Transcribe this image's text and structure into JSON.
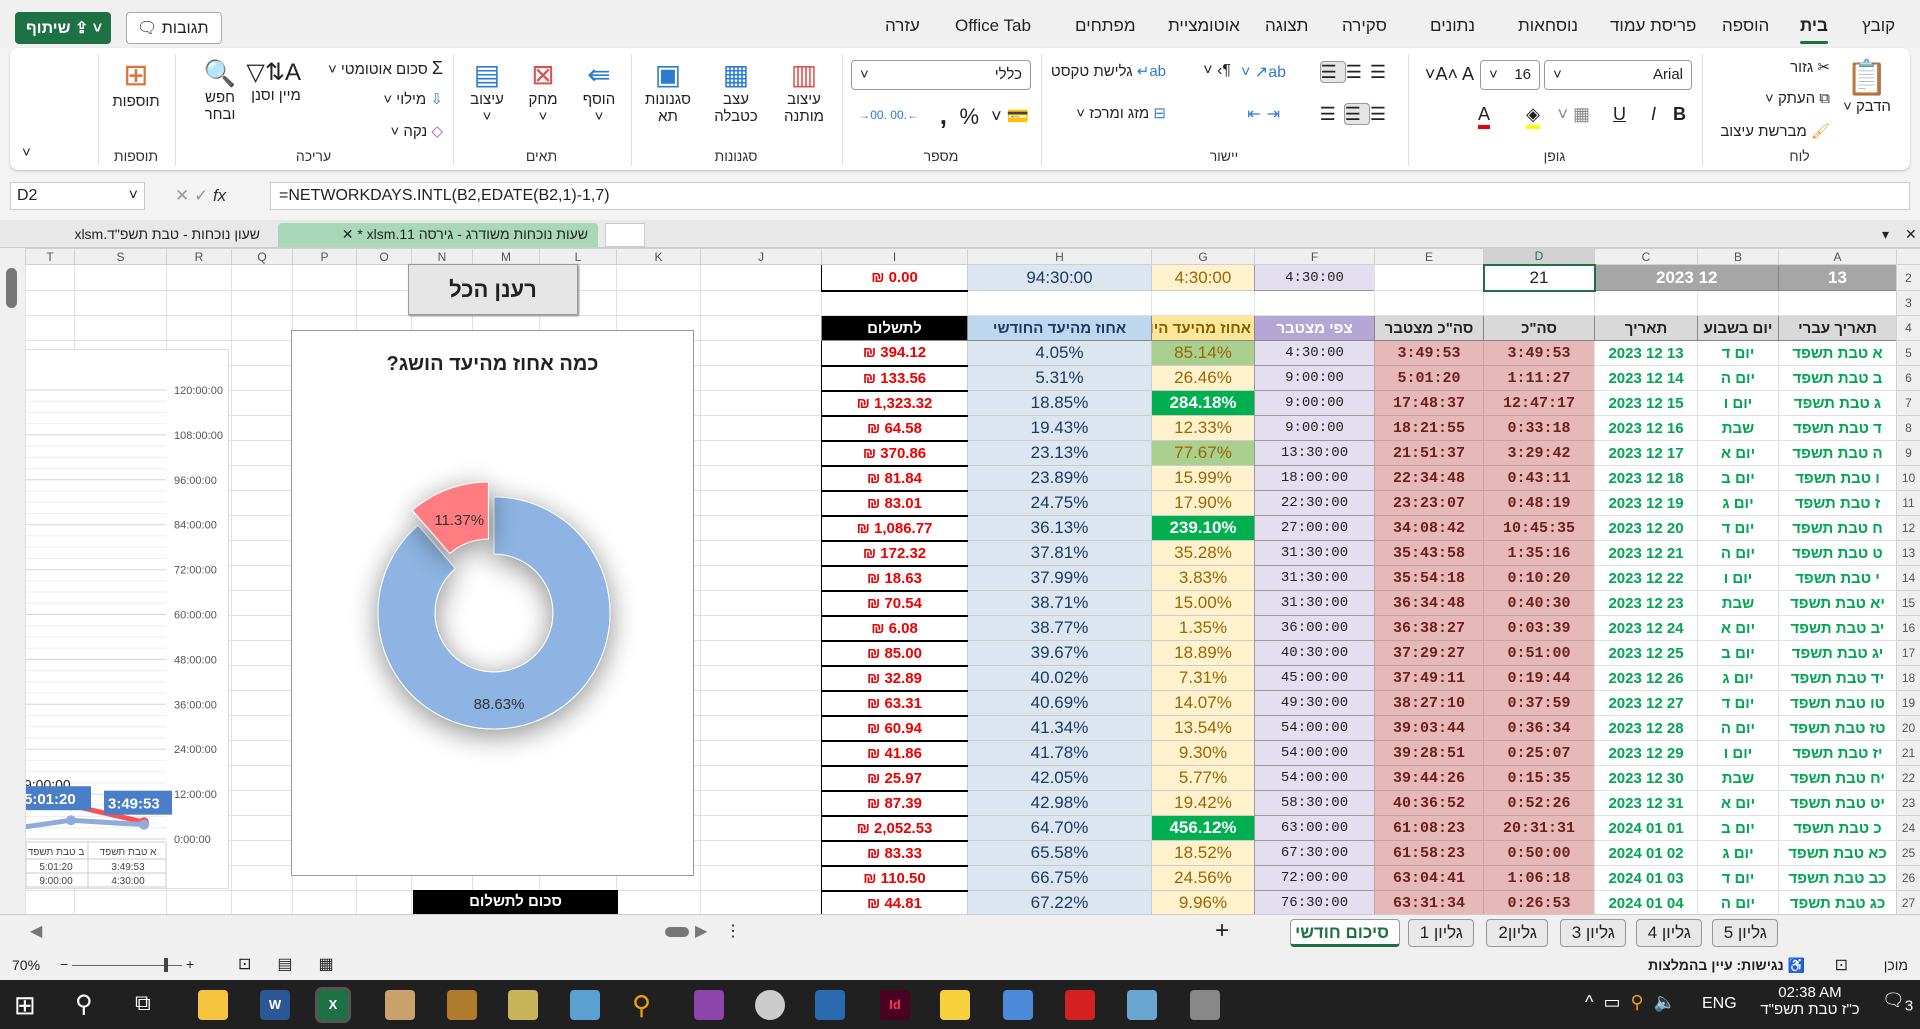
{
  "ribbon": {
    "tabs": [
      "קובץ",
      "בית",
      "הוספה",
      "פריסת עמוד",
      "נוסחאות",
      "נתונים",
      "סקירה",
      "תצוגה",
      "אוטומציית",
      "מפתחים",
      "Office Tab",
      "עזרה"
    ],
    "active_tab": "בית",
    "comments": "תגובות",
    "share": "שיתוף",
    "clipboard": {
      "label": "לוח",
      "paste": "הדבק",
      "cut": "גזור",
      "copy": "העתק",
      "format_painter": "מברשת עיצוב"
    },
    "font": {
      "label": "גופן",
      "name": "Arial",
      "size": "16",
      "bold": "B",
      "italic": "I",
      "underline": "U"
    },
    "alignment": {
      "label": "יישור",
      "wrap": "גלישת טקסט",
      "merge": "מזג ומרכז"
    },
    "number": {
      "label": "מספר",
      "format": "כללי",
      "percent": "%",
      "comma": ","
    },
    "styles": {
      "label": "סגנונות",
      "conditional": "עיצוב מותנה",
      "table": "עצב כטבלה",
      "cell": "סגנונות תא"
    },
    "cells": {
      "label": "תאים",
      "insert": "הוסף",
      "delete": "מחק",
      "format": "עיצוב"
    },
    "editing": {
      "label": "עריכה",
      "autosum": "סכום אוטומטי",
      "fill": "מילוי",
      "clear": "נקה",
      "sort": "מיין וסנן",
      "find": "חפש ובחר"
    },
    "addins": {
      "label": "תוספות",
      "addins": "תוספות"
    }
  },
  "formula_bar": {
    "name_box": "D2",
    "fx": "fx",
    "formula": "=NETWORKDAYS.INTL(B2,EDATE(B2,1)-1,7)"
  },
  "workbook_tabs": [
    {
      "label": "שעות נוכחות משודרג - גירסה 11.xlsm *",
      "active": true
    },
    {
      "label": "שעון נוכחות - טבת תשפ\"ד.xlsm",
      "active": false
    }
  ],
  "columns": [
    "A",
    "B",
    "C",
    "D",
    "E",
    "F",
    "G",
    "H",
    "I",
    "J",
    "K",
    "L",
    "M",
    "N",
    "O",
    "P",
    "Q",
    "R",
    "S",
    "T"
  ],
  "selected_column": "D",
  "row2": {
    "A": "13",
    "BC": "12 2023",
    "D": "21",
    "F": "4:30:00",
    "G": "4:30:00",
    "H": "94:30:00",
    "I": "₪ 0.00"
  },
  "headers": [
    "תאריך עברי",
    "יום בשבוע",
    "תאריך",
    "סה\"כ",
    "סה\"כ מצטבר",
    "צפי מצטבר",
    "אחוז מהיעד היומי",
    "אחוז מהיעד החודשי",
    "לתשלום"
  ],
  "rows": [
    [
      "א טבת תשפד",
      "יום ד",
      "13 12 2023",
      "3:49:53",
      "3:49:53",
      "4:30:00",
      "85.14%",
      "4.05%",
      "₪ 394.12"
    ],
    [
      "ב טבת תשפד",
      "יום ה",
      "14 12 2023",
      "1:11:27",
      "5:01:20",
      "9:00:00",
      "26.46%",
      "5.31%",
      "₪ 133.56"
    ],
    [
      "ג טבת תשפד",
      "יום ו",
      "15 12 2023",
      "12:47:17",
      "17:48:37",
      "9:00:00",
      "284.18%",
      "18.85%",
      "₪ 1,323.32"
    ],
    [
      "ד טבת תשפד",
      "שבת",
      "16 12 2023",
      "0:33:18",
      "18:21:55",
      "9:00:00",
      "12.33%",
      "19.43%",
      "₪ 64.58"
    ],
    [
      "ה טבת תשפד",
      "יום א",
      "17 12 2023",
      "3:29:42",
      "21:51:37",
      "13:30:00",
      "77.67%",
      "23.13%",
      "₪ 370.86"
    ],
    [
      "ו טבת תשפד",
      "יום ב",
      "18 12 2023",
      "0:43:11",
      "22:34:48",
      "18:00:00",
      "15.99%",
      "23.89%",
      "₪ 81.84"
    ],
    [
      "ז טבת תשפד",
      "יום ג",
      "19 12 2023",
      "0:48:19",
      "23:23:07",
      "22:30:00",
      "17.90%",
      "24.75%",
      "₪ 83.01"
    ],
    [
      "ח טבת תשפד",
      "יום ד",
      "20 12 2023",
      "10:45:35",
      "34:08:42",
      "27:00:00",
      "239.10%",
      "36.13%",
      "₪ 1,086.77"
    ],
    [
      "ט טבת תשפד",
      "יום ה",
      "21 12 2023",
      "1:35:16",
      "35:43:58",
      "31:30:00",
      "35.28%",
      "37.81%",
      "₪ 172.32"
    ],
    [
      "י טבת תשפד",
      "יום ו",
      "22 12 2023",
      "0:10:20",
      "35:54:18",
      "31:30:00",
      "3.83%",
      "37.99%",
      "₪ 18.63"
    ],
    [
      "יא טבת תשפד",
      "שבת",
      "23 12 2023",
      "0:40:30",
      "36:34:48",
      "31:30:00",
      "15.00%",
      "38.71%",
      "₪ 70.54"
    ],
    [
      "יב טבת תשפד",
      "יום א",
      "24 12 2023",
      "0:03:39",
      "36:38:27",
      "36:00:00",
      "1.35%",
      "38.77%",
      "₪ 6.08"
    ],
    [
      "יג טבת תשפד",
      "יום ב",
      "25 12 2023",
      "0:51:00",
      "37:29:27",
      "40:30:00",
      "18.89%",
      "39.67%",
      "₪ 85.00"
    ],
    [
      "יד טבת תשפד",
      "יום ג",
      "26 12 2023",
      "0:19:44",
      "37:49:11",
      "45:00:00",
      "7.31%",
      "40.02%",
      "₪ 32.89"
    ],
    [
      "טו טבת תשפד",
      "יום ד",
      "27 12 2023",
      "0:37:59",
      "38:27:10",
      "49:30:00",
      "14.07%",
      "40.69%",
      "₪ 63.31"
    ],
    [
      "טז טבת תשפד",
      "יום ה",
      "28 12 2023",
      "0:36:34",
      "39:03:44",
      "54:00:00",
      "13.54%",
      "41.34%",
      "₪ 60.94"
    ],
    [
      "יז טבת תשפד",
      "יום ו",
      "29 12 2023",
      "0:25:07",
      "39:28:51",
      "54:00:00",
      "9.30%",
      "41.78%",
      "₪ 41.86"
    ],
    [
      "יח טבת תשפד",
      "שבת",
      "30 12 2023",
      "0:15:35",
      "39:44:26",
      "54:00:00",
      "5.77%",
      "42.05%",
      "₪ 25.97"
    ],
    [
      "יט טבת תשפד",
      "יום א",
      "31 12 2023",
      "0:52:26",
      "40:36:52",
      "58:30:00",
      "19.42%",
      "42.98%",
      "₪ 87.39"
    ],
    [
      "כ טבת תשפד",
      "יום ב",
      "01 01 2024",
      "20:31:31",
      "61:08:23",
      "63:00:00",
      "456.12%",
      "64.70%",
      "₪ 2,052.53"
    ],
    [
      "כא טבת תשפד",
      "יום ג",
      "02 01 2024",
      "0:50:00",
      "61:58:23",
      "67:30:00",
      "18.52%",
      "65.58%",
      "₪ 83.33"
    ],
    [
      "כב טבת תשפד",
      "יום ד",
      "03 01 2024",
      "1:06:18",
      "63:04:41",
      "72:00:00",
      "24.56%",
      "66.75%",
      "₪ 110.50"
    ],
    [
      "כג טבת תשפד",
      "יום ה",
      "04 01 2024",
      "0:26:53",
      "63:31:34",
      "76:30:00",
      "9.96%",
      "67.22%",
      "₪ 44.81"
    ]
  ],
  "colors": {
    "excel_green": "#1e7145",
    "daily_high": "#00b050",
    "daily_mid": "#a9d08e",
    "daily_low": "#fff2cc",
    "donut_blue": "#8db4e2",
    "donut_red": "#ff7c80"
  },
  "refresh_button": "רענן הכל",
  "sum_label": "סכום לתשלום",
  "chart_data": [
    {
      "type": "pie",
      "donut": true,
      "title": "כמה אחוז מהיעד הושג?",
      "labels": [
        "88.63%",
        "11.37%"
      ],
      "values": [
        88.63,
        11.37
      ],
      "colors": [
        "#8db4e2",
        "#ff7c80"
      ],
      "exploded": [
        false,
        true
      ]
    },
    {
      "type": "line",
      "categories": [
        "א טבת תשפד",
        "ב טבת תשפד"
      ],
      "series": [
        {
          "values": [
            "4:30:00",
            "9:00:00"
          ],
          "color": "#ff5050"
        },
        {
          "values": [
            "3:49:53",
            "5:01:20"
          ],
          "color": "#8faadc"
        }
      ],
      "data_labels": [
        "9:00:00",
        "5:01:20",
        "3:49:53"
      ],
      "y_ticks": [
        "0:00:00",
        "12:00:00",
        "24:00:00",
        "36:00:00",
        "48:00:00",
        "60:00:00",
        "72:00:00",
        "84:00:00",
        "96:00:00",
        "108:00:00",
        "120:00:00"
      ],
      "ylim": [
        "0:00:00",
        "120:00:00"
      ],
      "grid": true,
      "data_table": true,
      "y_axis_side": "right"
    }
  ],
  "sheet_tabs": [
    {
      "label": "גליון 5"
    },
    {
      "label": "גליון 4"
    },
    {
      "label": "גליון 3"
    },
    {
      "label": "גליון2"
    },
    {
      "label": "גליון 1"
    },
    {
      "label": "סיכום חודשי",
      "active": true
    }
  ],
  "status": {
    "ready": "מוכן",
    "accessibility": "נגישות: עיין בהמלצות",
    "zoom": "70%"
  },
  "taskbar": {
    "time": "02:38 AM",
    "date": "כ\"ז טבת תשפ\"ד",
    "lang": "ENG",
    "notifications": "3"
  }
}
